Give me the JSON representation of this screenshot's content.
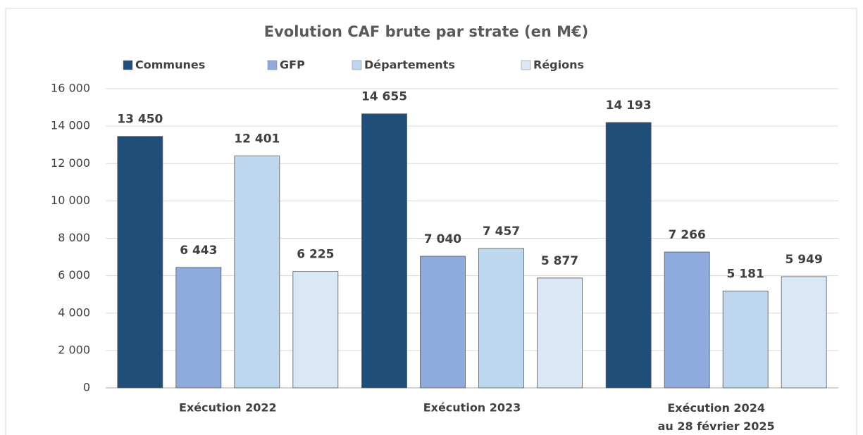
{
  "chart_data": {
    "type": "bar",
    "title": "Evolution CAF brute par strate (en M€)",
    "categories": [
      "Exécution 2022",
      "Exécution 2023",
      "Exécution 2024\nau 28 février 2025"
    ],
    "series": [
      {
        "name": "Communes",
        "color": "#1f4e79",
        "values": [
          13450,
          14655,
          14193
        ],
        "value_labels": [
          "13 450",
          "14 655",
          "14 193"
        ]
      },
      {
        "name": "GFP",
        "color": "#8faadc",
        "values": [
          6443,
          7040,
          7266
        ],
        "value_labels": [
          "6 443",
          "7 040",
          "7 266"
        ]
      },
      {
        "name": "Départements",
        "color": "#bdd7ee",
        "values": [
          12401,
          7457,
          5181
        ],
        "value_labels": [
          "12 401",
          "7 457",
          "5 181"
        ]
      },
      {
        "name": "Régions",
        "color": "#dae7f5",
        "values": [
          6225,
          5877,
          5949
        ],
        "value_labels": [
          "6 225",
          "5 877",
          "5 949"
        ]
      }
    ],
    "ylim": [
      0,
      16000
    ],
    "yticks": [
      0,
      {
        "value": 2000,
        "label": "2 000"
      },
      {
        "value": 4000,
        "label": "4 000"
      },
      {
        "value": 6000,
        "label": "6 000"
      },
      {
        "value": 8000,
        "label": "8 000"
      },
      {
        "value": 10000,
        "label": "10 000"
      },
      {
        "value": 12000,
        "label": "12 000"
      },
      {
        "value": 14000,
        "label": "14 000"
      },
      {
        "value": 16000,
        "label": "16 000"
      }
    ],
    "grid": true,
    "legend": "top"
  }
}
